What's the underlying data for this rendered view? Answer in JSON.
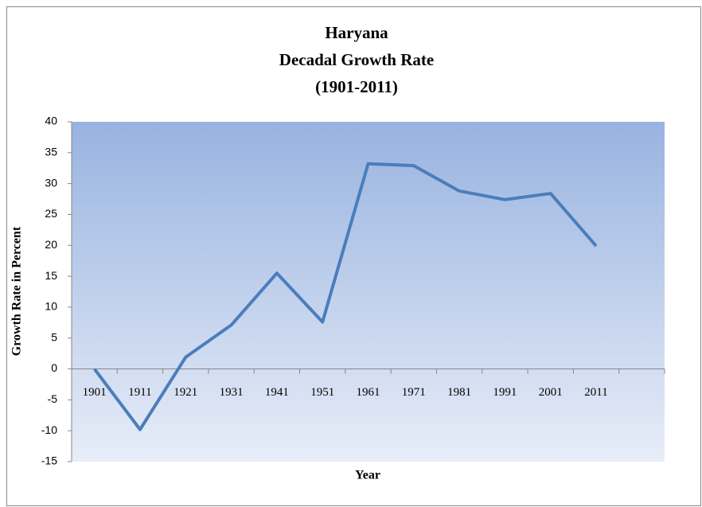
{
  "chart_data": {
    "type": "line",
    "title": [
      "Haryana",
      "Decadal Growth Rate",
      "(1901-2011)"
    ],
    "x_label": "Year",
    "y_label": "Growth Rate in Percent",
    "categories": [
      "1901",
      "1911",
      "1921",
      "1931",
      "1941",
      "1951",
      "1961",
      "1971",
      "1981",
      "1991",
      "2001",
      "2011",
      null
    ],
    "series": [
      {
        "name": "Growth Rate",
        "color": "#4a7ebb",
        "values": [
          0,
          -9.8,
          1.9,
          7.1,
          15.5,
          7.6,
          33.2,
          32.9,
          28.8,
          27.4,
          28.4,
          19.9,
          null
        ]
      }
    ],
    "ylim": [
      -15,
      40
    ],
    "yticks": [
      -15,
      -10,
      -5,
      0,
      5,
      10,
      15,
      20,
      25,
      30,
      35,
      40
    ],
    "grid": false,
    "legend": false
  }
}
